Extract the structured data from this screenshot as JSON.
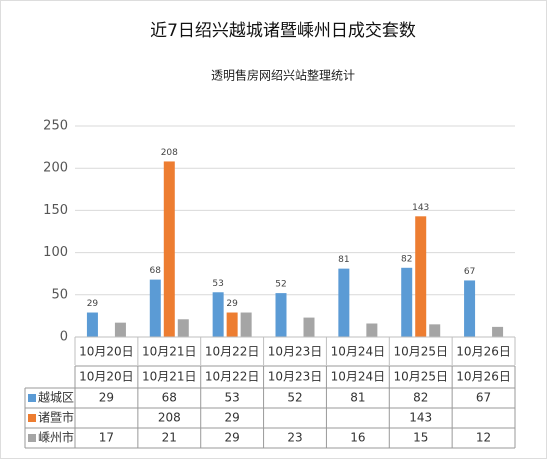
{
  "chart_data": {
    "type": "bar",
    "title": "近7日绍兴越城诸暨嵊州日成交套数",
    "subtitle": "透明售房网绍兴站整理统计",
    "categories": [
      "10月20日",
      "10月21日",
      "10月22日",
      "10月23日",
      "10月24日",
      "10月25日",
      "10月26日"
    ],
    "series": [
      {
        "name": "越城区",
        "color": "#5b9bd5",
        "show_labels": true,
        "values": [
          29,
          68,
          53,
          52,
          81,
          82,
          67
        ]
      },
      {
        "name": "诸暨市",
        "color": "#ed7d31",
        "show_labels": true,
        "values": [
          null,
          208,
          29,
          null,
          null,
          143,
          null
        ]
      },
      {
        "name": "嵊州市",
        "color": "#a5a5a5",
        "show_labels": false,
        "values": [
          17,
          21,
          29,
          23,
          16,
          15,
          12
        ]
      }
    ],
    "ylim": [
      0,
      250
    ],
    "yticks": [
      0,
      50,
      100,
      150,
      200,
      250
    ],
    "grid": true,
    "data_table": true
  }
}
